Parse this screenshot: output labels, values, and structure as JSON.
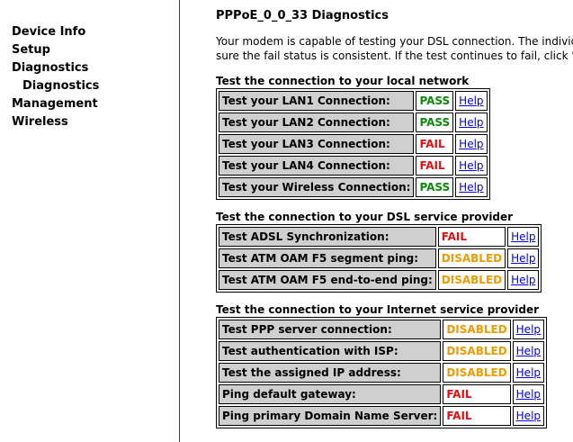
{
  "sidebar": {
    "items": [
      {
        "label": "Device Info"
      },
      {
        "label": "Setup"
      },
      {
        "label": "Diagnostics"
      },
      {
        "label": "Diagnostics"
      },
      {
        "label": "Management"
      },
      {
        "label": "Wireless"
      }
    ]
  },
  "page": {
    "title": "PPPoE_0_0_33 Diagnostics",
    "intro_line1": "Your modem is capable of testing your DSL connection. The individua",
    "intro_line2": "sure the fail status is consistent. If the test continues to fail, click \"He"
  },
  "help_label": "Help",
  "colors": {
    "pass": "#0a8a0a",
    "fail": "#e01010",
    "disabled": "#f09b00",
    "sidebar_border": "#a01818"
  },
  "lan": {
    "title": "Test the connection to your local network",
    "rows": [
      {
        "label": "Test your LAN1 Connection:",
        "status": "PASS"
      },
      {
        "label": "Test your LAN2 Connection:",
        "status": "PASS"
      },
      {
        "label": "Test your LAN3 Connection:",
        "status": "FAIL"
      },
      {
        "label": "Test your LAN4 Connection:",
        "status": "FAIL"
      },
      {
        "label": "Test your Wireless Connection:",
        "status": "PASS"
      }
    ]
  },
  "dsl": {
    "title": "Test the connection to your DSL service provider",
    "rows": [
      {
        "label": "Test ADSL Synchronization:",
        "status": "FAIL"
      },
      {
        "label": "Test ATM OAM F5 segment ping:",
        "status": "DISABLED"
      },
      {
        "label": "Test ATM OAM F5 end-to-end ping:",
        "status": "DISABLED"
      }
    ]
  },
  "isp": {
    "title": "Test the connection to your Internet service provider",
    "rows": [
      {
        "label": "Test PPP server connection:",
        "status": "DISABLED"
      },
      {
        "label": "Test authentication with ISP:",
        "status": "DISABLED"
      },
      {
        "label": "Test the assigned IP address:",
        "status": "DISABLED"
      },
      {
        "label": "Ping default gateway:",
        "status": "FAIL"
      },
      {
        "label": "Ping primary Domain Name Server:",
        "status": "FAIL"
      }
    ]
  }
}
